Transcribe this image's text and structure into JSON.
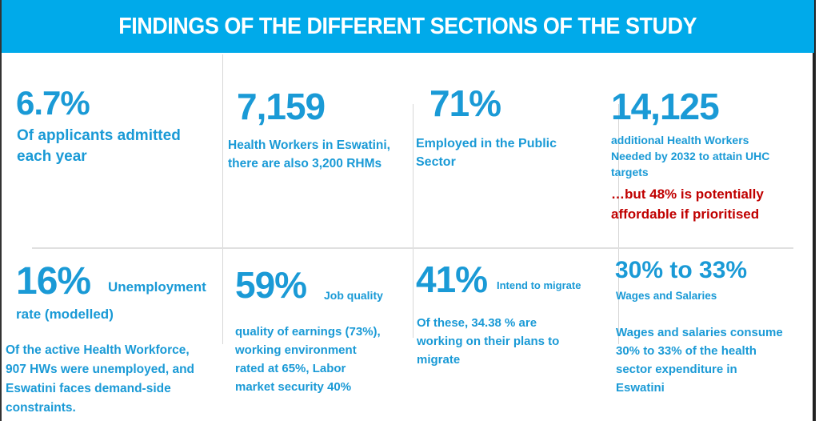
{
  "title": "FINDINGS OF THE DIFFERENT SECTIONS OF THE STUDY",
  "colors": {
    "header_bg": "#00aaea",
    "accent_text": "#1a9ad6",
    "alert_text": "#c00000"
  },
  "cards": [
    {
      "stat": "6.7%",
      "lines": [
        "Of applicants admitted",
        "each year"
      ]
    },
    {
      "stat": "7,159",
      "lines": [
        "Health Workers in Eswatini,",
        "there are also 3,200 RHMs"
      ]
    },
    {
      "stat": "71%",
      "lines": [
        "Employed in the Public",
        "Sector"
      ]
    },
    {
      "stat": "14,125",
      "lines": [
        "additional Health Workers",
        "Needed by 2032 to attain UHC",
        "targets"
      ],
      "alert_lines": [
        "…but 48% is potentially",
        "affordable if prioritised"
      ]
    },
    {
      "stat": "16%",
      "label": "Unemployment",
      "label2": "rate (modelled)",
      "lines": [
        "Of the active Health Workforce,",
        "907 HWs were unemployed, and",
        "Eswatini faces demand-side",
        "constraints."
      ]
    },
    {
      "stat": "59%",
      "label": "Job quality",
      "lines": [
        "quality of earnings (73%),",
        "working environment",
        "rated at 65%,  Labor",
        "market security 40%"
      ]
    },
    {
      "stat": "41%",
      "label": "Intend to migrate",
      "lines": [
        "Of these, 34.38 % are",
        "working on their plans to",
        "migrate"
      ]
    },
    {
      "stat": "30% to 33%",
      "label": "Wages and Salaries",
      "lines": [
        "Wages and salaries consume",
        "30% to 33% of the health",
        "sector expenditure in",
        "Eswatini"
      ]
    }
  ]
}
